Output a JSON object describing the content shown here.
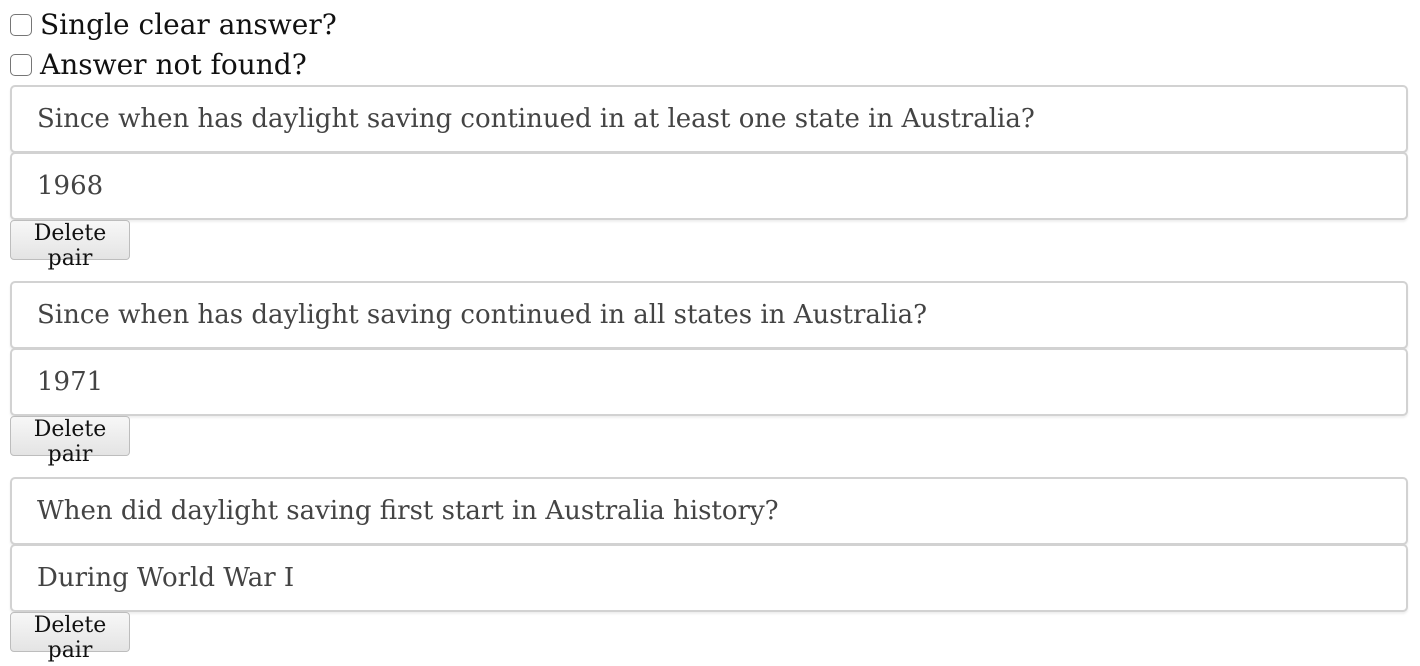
{
  "checkboxes": {
    "single_clear_answer": {
      "label": "Single clear answer?",
      "checked": false
    },
    "answer_not_found": {
      "label": "Answer not found?",
      "checked": false
    }
  },
  "pairs": [
    {
      "question": "Since when has daylight saving continued in at least one state in Australia?",
      "answer": "1968",
      "delete_label": "Delete pair"
    },
    {
      "question": "Since when has daylight saving continued in all states in Australia?",
      "answer": "1971",
      "delete_label": "Delete pair"
    },
    {
      "question": "When did daylight saving first start in Australia history?",
      "answer": "During World War I",
      "delete_label": "Delete pair"
    }
  ]
}
